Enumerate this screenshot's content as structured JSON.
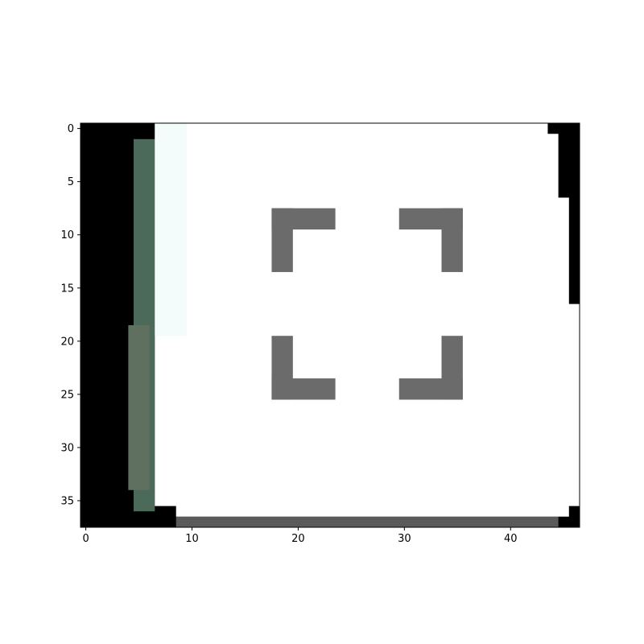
{
  "image_view": {
    "depicted_icon": "fullscreen-icon",
    "background_color": "#000000",
    "tile_color": "#ffffff",
    "icon_color": "#6b6b6b",
    "bottom_strip_color": "#5a5a5a",
    "left_strip_color": "#4b6a5a",
    "x_range": [
      -0.5,
      46.5
    ],
    "y_range": [
      37.5,
      -0.5
    ]
  },
  "axes": {
    "x_ticks": [
      {
        "value": 0,
        "label": "0"
      },
      {
        "value": 10,
        "label": "10"
      },
      {
        "value": 20,
        "label": "20"
      },
      {
        "value": 30,
        "label": "30"
      },
      {
        "value": 40,
        "label": "40"
      }
    ],
    "y_ticks": [
      {
        "value": 0,
        "label": "0"
      },
      {
        "value": 5,
        "label": "5"
      },
      {
        "value": 10,
        "label": "10"
      },
      {
        "value": 15,
        "label": "15"
      },
      {
        "value": 20,
        "label": "20"
      },
      {
        "value": 25,
        "label": "25"
      },
      {
        "value": 30,
        "label": "30"
      },
      {
        "value": 35,
        "label": "35"
      }
    ]
  }
}
